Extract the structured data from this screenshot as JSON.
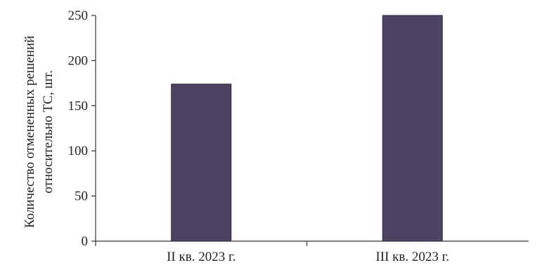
{
  "chart_data": {
    "type": "bar",
    "categories": [
      "II кв. 2023 г.",
      "III кв. 2023 г."
    ],
    "values": [
      174,
      250
    ],
    "title": "",
    "xlabel": "",
    "ylabel_lines": [
      "Количество отмененных решений",
      "относительно ТС, шт."
    ],
    "ylim": [
      0,
      250
    ],
    "yticks": [
      0,
      50,
      100,
      150,
      200,
      250
    ],
    "grid": false,
    "legend": "none",
    "bar_color": "#4e4263",
    "axis_color": "#333333"
  }
}
